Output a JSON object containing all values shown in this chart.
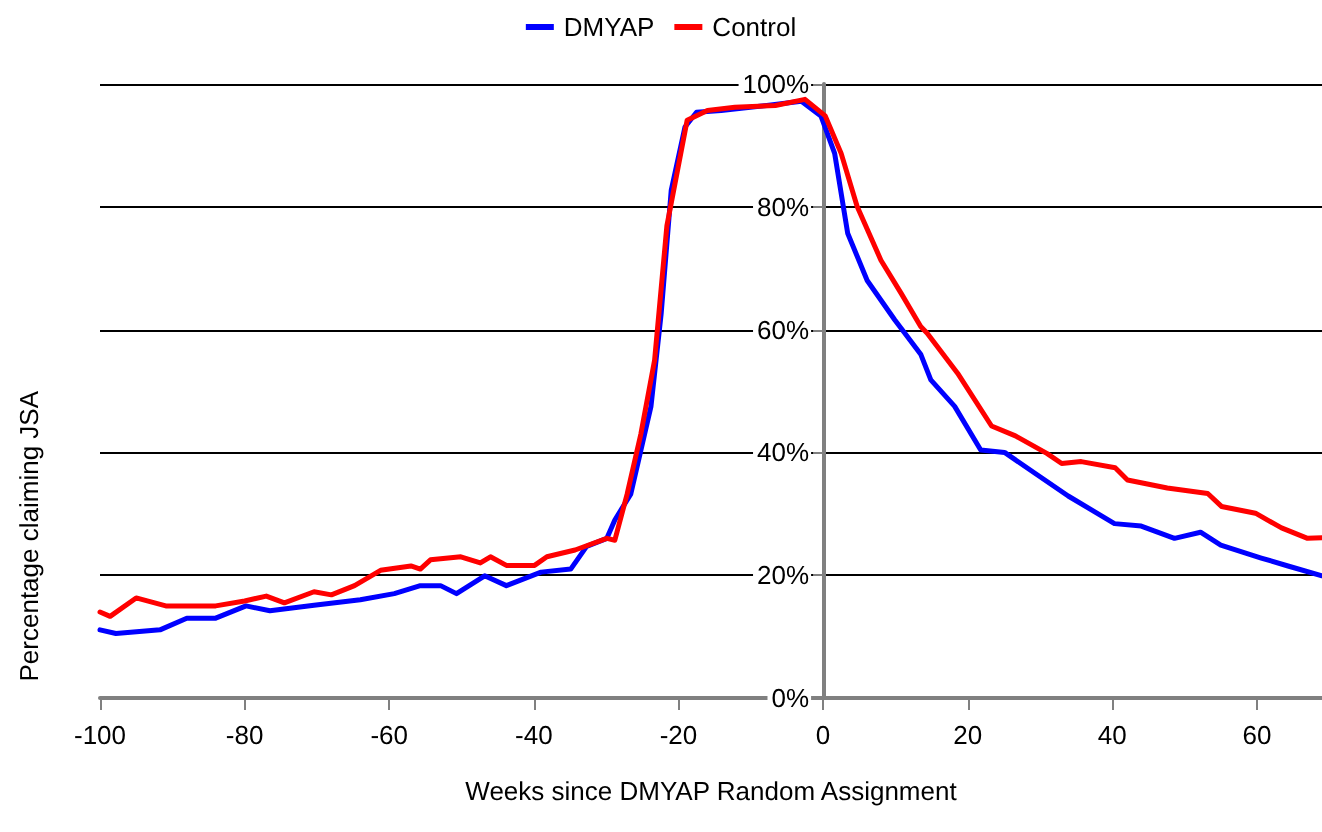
{
  "chart_data": {
    "type": "line",
    "xlabel": "Weeks since DMYAP Random Assignment",
    "ylabel": "Percentage claiming JSA",
    "xlim": [
      -100,
      69
    ],
    "xticks": [
      -100,
      -80,
      -60,
      -40,
      -20,
      0,
      20,
      40,
      60
    ],
    "ylim": [
      0,
      100
    ],
    "yticks": [
      {
        "value": 0,
        "label": "0%"
      },
      {
        "value": 20,
        "label": "20%"
      },
      {
        "value": 40,
        "label": "40%"
      },
      {
        "value": 60,
        "label": "60%"
      },
      {
        "value": 80,
        "label": "80%"
      },
      {
        "value": 100,
        "label": "100%"
      }
    ],
    "grid": "y",
    "legend": "top",
    "marker": "none",
    "line_style": "solid",
    "series": [
      {
        "name": "DMYAP",
        "color": "#0000ff",
        "x": [
          -100,
          -97.8,
          -91.7,
          -88,
          -84,
          -79.8,
          -76.5,
          -70.4,
          -64,
          -59.3,
          -55.7,
          -52.9,
          -50.7,
          -46.8,
          -43.8,
          -39,
          -34.9,
          -32.7,
          -29.9,
          -28.8,
          -26.6,
          -23.8,
          -22.4,
          -21,
          -19.1,
          -17.5,
          -14.1,
          -7.8,
          -3,
          -0.3,
          1.6,
          3.4,
          6.1,
          9.9,
          13.5,
          14.9,
          18.2,
          21.8,
          25.1,
          29.3,
          33.9,
          40.3,
          44,
          48.6,
          52.2,
          55,
          60.6,
          64.3,
          69
        ],
        "values": [
          11.1,
          10.5,
          11.1,
          13,
          13,
          15,
          14.2,
          15.1,
          16,
          17,
          18.3,
          18.3,
          17,
          19.9,
          18.3,
          20.5,
          21,
          24.7,
          26,
          29,
          33.2,
          47.5,
          62.5,
          82.7,
          93,
          95.4,
          95.7,
          96.5,
          97.2,
          94.8,
          88.7,
          75.7,
          68,
          61.6,
          56,
          51.8,
          47.5,
          40.4,
          40,
          36.6,
          32.9,
          28.4,
          28,
          26,
          27,
          24.9,
          22.8,
          21.5,
          19.9
        ]
      },
      {
        "name": "Control",
        "color": "#ff0000",
        "x": [
          -100,
          -98.6,
          -95,
          -90.9,
          -84,
          -80,
          -77,
          -74.5,
          -70.4,
          -68,
          -64.8,
          -61.2,
          -57,
          -55.7,
          -54.3,
          -50.1,
          -47.4,
          -46,
          -43.8,
          -39.9,
          -38.2,
          -34.3,
          -29.9,
          -28.8,
          -27.1,
          -25.2,
          -23.3,
          -21.6,
          -18.8,
          -16,
          -12.2,
          -6.6,
          -2.5,
          0.3,
          2.5,
          4.7,
          8,
          10.8,
          13.5,
          14.4,
          18.6,
          23.3,
          26.6,
          31,
          33,
          35.7,
          40.4,
          42.1,
          47.6,
          53.2,
          55.1,
          59.8,
          63.4,
          67,
          69
        ],
        "values": [
          14,
          13.3,
          16.3,
          15,
          15,
          15.8,
          16.6,
          15.5,
          17.3,
          16.8,
          18.3,
          20.8,
          21.5,
          21,
          22.5,
          23,
          22,
          23,
          21.6,
          21.6,
          23,
          24.1,
          26,
          25.7,
          33.2,
          43,
          55,
          76.9,
          94.1,
          95.7,
          96.2,
          96.5,
          97.5,
          94.8,
          88.7,
          80.1,
          71.3,
          65.9,
          60.5,
          59.4,
          52.9,
          44.3,
          42.7,
          39.8,
          38.2,
          38.5,
          37.5,
          35.5,
          34.2,
          33.3,
          31.2,
          30.1,
          27.7,
          26,
          26.1
        ]
      }
    ]
  }
}
